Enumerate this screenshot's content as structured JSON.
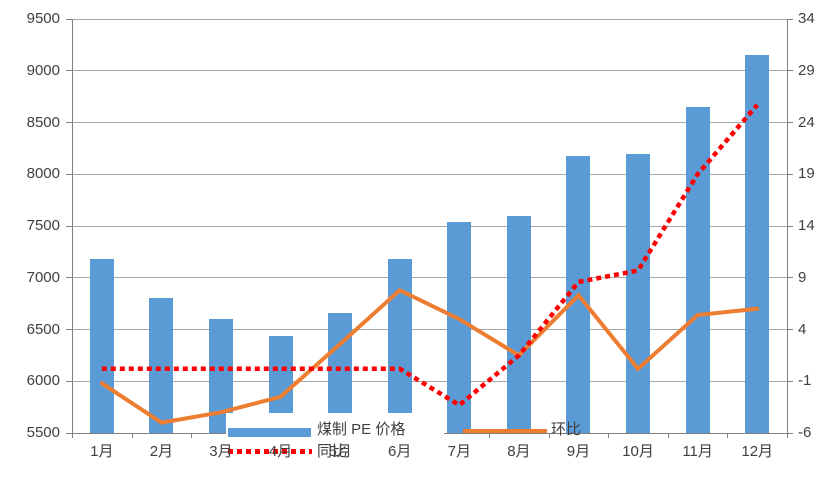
{
  "chart_data": {
    "type": "bar",
    "subtype": "combo-bar-line-dual-axis",
    "categories": [
      "1月",
      "2月",
      "3月",
      "4月",
      "5月",
      "6月",
      "7月",
      "8月",
      "9月",
      "10月",
      "11月",
      "12月"
    ],
    "series": [
      {
        "name": "煤制 PE 价格",
        "type": "bar",
        "axis": "left",
        "color": "#5b9bd5",
        "values": [
          7180,
          6800,
          6600,
          6440,
          6660,
          7180,
          7540,
          7600,
          8180,
          8200,
          8650,
          9150
        ]
      },
      {
        "name": "环比",
        "type": "line",
        "axis": "right",
        "color": "#ed7d31",
        "values": [
          -1.2,
          -5.0,
          -4.0,
          -2.5,
          2.6,
          7.8,
          5.0,
          1.5,
          7.3,
          0.2,
          5.4,
          6.0
        ]
      },
      {
        "name": "同比",
        "type": "line-dotted",
        "axis": "right",
        "color": "#ff0000",
        "values": [
          0.2,
          0.2,
          0.2,
          0.2,
          0.2,
          0.2,
          -3.3,
          1.5,
          8.6,
          9.7,
          19.0,
          25.7
        ]
      }
    ],
    "title": "",
    "xlabel": "",
    "ylabel": "",
    "left_axis": {
      "min": 5500,
      "max": 9500,
      "step": 500,
      "ticks": [
        "5500",
        "6000",
        "6500",
        "7000",
        "7500",
        "8000",
        "8500",
        "9000",
        "9500"
      ]
    },
    "right_axis": {
      "min": -6,
      "max": 34,
      "step": 5,
      "ticks": [
        "-6",
        "-1",
        "4",
        "9",
        "14",
        "19",
        "24",
        "29",
        "34"
      ]
    },
    "grid": "horizontal-on",
    "legend_position": "bottom-inside-overlapping"
  },
  "legend": {
    "bar_label": "煤制 PE 价格",
    "line1_label": "环比",
    "line2_label": "同比"
  },
  "colors": {
    "bar": "#5b9bd5",
    "line_mom": "#ed7d31",
    "line_yoy": "#ff0000",
    "gridline": "#a6a6a6",
    "axis": "#808080",
    "text": "#404040",
    "background": "#ffffff"
  }
}
